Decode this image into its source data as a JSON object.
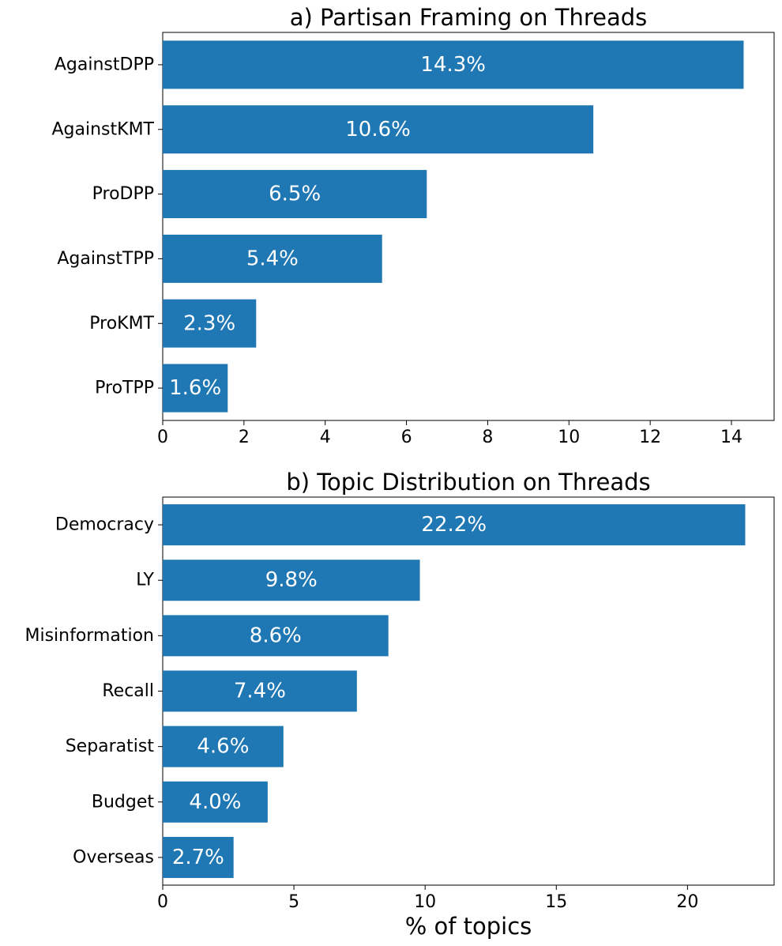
{
  "chart_data": [
    {
      "type": "bar",
      "orientation": "horizontal",
      "title": "a) Partisan Framing on Threads",
      "xlabel": "",
      "ylabel": "",
      "categories": [
        "AgainstDPP",
        "AgainstKMT",
        "ProDPP",
        "AgainstTPP",
        "ProKMT",
        "ProTPP"
      ],
      "values": [
        14.3,
        10.6,
        6.5,
        5.4,
        2.3,
        1.6
      ],
      "value_labels": [
        "14.3%",
        "10.6%",
        "6.5%",
        "5.4%",
        "2.3%",
        "1.6%"
      ],
      "xlim": [
        0,
        15.05
      ],
      "xticks": [
        0,
        2,
        4,
        6,
        8,
        10,
        12,
        14
      ],
      "xtick_labels": [
        "0",
        "2",
        "4",
        "6",
        "8",
        "10",
        "12",
        "14"
      ],
      "bar_color": "#1f77b4",
      "grid": false
    },
    {
      "type": "bar",
      "orientation": "horizontal",
      "title": "b) Topic Distribution on Threads",
      "xlabel": "% of topics",
      "ylabel": "",
      "categories": [
        "Democracy",
        "LY",
        "Misinformation",
        "Recall",
        "Separatist",
        "Budget",
        "Overseas"
      ],
      "values": [
        22.2,
        9.8,
        8.6,
        7.4,
        4.6,
        4.0,
        2.7
      ],
      "value_labels": [
        "22.2%",
        "9.8%",
        "8.6%",
        "7.4%",
        "4.6%",
        "4.0%",
        "2.7%"
      ],
      "xlim": [
        0,
        23.3
      ],
      "xticks": [
        0,
        5,
        10,
        15,
        20
      ],
      "xtick_labels": [
        "0",
        "5",
        "10",
        "15",
        "20"
      ],
      "bar_color": "#1f77b4",
      "grid": false
    }
  ]
}
